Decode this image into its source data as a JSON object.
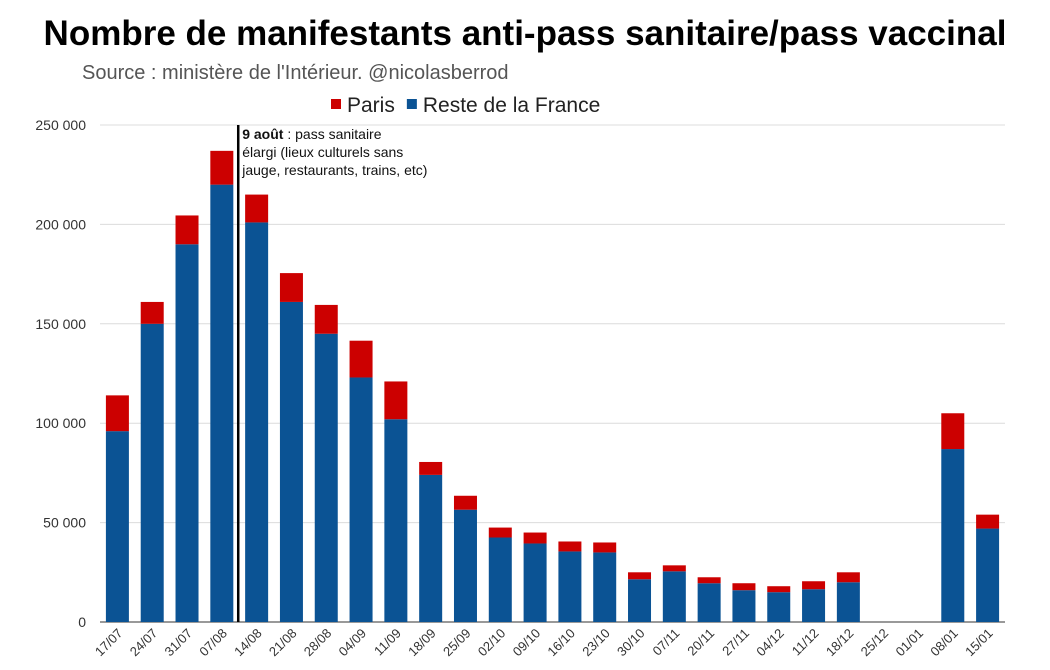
{
  "title": "Nombre de manifestants anti-pass sanitaire/pass vaccinal",
  "subtitle": "Source : ministère de l'Intérieur. @nicolasberrod",
  "annotation": {
    "bold": "9 août",
    "line1_rest": " : pass sanitaire",
    "line2": "élargi (lieux culturels sans",
    "line3": "jauge, restaurants, trains, etc)"
  },
  "chart_data": {
    "type": "bar",
    "stacked": true,
    "categories": [
      "17/07",
      "24/07",
      "31/07",
      "07/08",
      "14/08",
      "21/08",
      "28/08",
      "04/09",
      "11/09",
      "18/09",
      "25/09",
      "02/10",
      "09/10",
      "16/10",
      "23/10",
      "30/10",
      "07/11",
      "20/11",
      "27/11",
      "04/12",
      "11/12",
      "18/12",
      "25/12",
      "01/01",
      "08/01",
      "15/01"
    ],
    "series": [
      {
        "name": "Paris",
        "color": "#cc0000",
        "values": [
          18000,
          11000,
          14500,
          17000,
          14000,
          14500,
          14500,
          18500,
          19000,
          6500,
          7000,
          5000,
          5500,
          5000,
          5000,
          3500,
          3000,
          3000,
          3500,
          3000,
          4000,
          5000,
          0,
          0,
          18000,
          7000
        ]
      },
      {
        "name": "Reste de la France",
        "color": "#0b5394",
        "values": [
          96000,
          150000,
          190000,
          220000,
          201000,
          161000,
          145000,
          123000,
          102000,
          74000,
          56500,
          42500,
          39500,
          35500,
          35000,
          21500,
          25500,
          19500,
          16000,
          15000,
          16500,
          20000,
          0,
          0,
          87000,
          47000
        ]
      }
    ],
    "yticks": [
      "250 000",
      "200 000",
      "150 000",
      "100 000",
      "50 000",
      "0"
    ],
    "ylim": [
      0,
      250000
    ],
    "grid": true,
    "legend_position": "top",
    "event_marker": {
      "after_category": "07/08",
      "label": "9 août"
    }
  }
}
